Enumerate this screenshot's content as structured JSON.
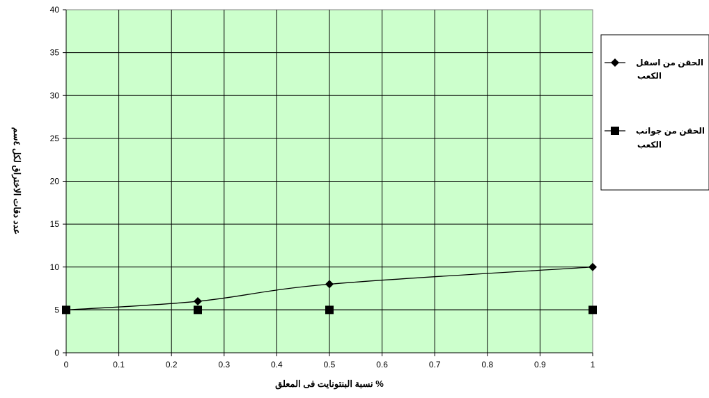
{
  "chart_data": {
    "type": "line",
    "xlabel": "نسبة البنتونايت فى المعلق %",
    "ylabel": "عدد دقات الاختراق لكل ٤سم",
    "xlim": [
      0,
      1
    ],
    "ylim": [
      0,
      40
    ],
    "x_ticks": [
      "0",
      "0.1",
      "0.2",
      "0.3",
      "0.4",
      "0.5",
      "0.6",
      "0.7",
      "0.8",
      "0.9",
      "1"
    ],
    "y_ticks": [
      "0",
      "5",
      "10",
      "15",
      "20",
      "25",
      "30",
      "35",
      "40"
    ],
    "grid": true,
    "plot_background": "#ccffcc",
    "legend_position": "right",
    "series": [
      {
        "name_line1": "الحقن من اسفل",
        "name_line2": "الكعب",
        "marker": "diamond",
        "smooth": true,
        "color": "#000000",
        "x": [
          0,
          0.25,
          0.5,
          1
        ],
        "y": [
          5,
          6,
          8,
          10
        ]
      },
      {
        "name_line1": "الحقن من جوانب",
        "name_line2": "الكعب",
        "marker": "square",
        "smooth": false,
        "color": "#000000",
        "x": [
          0,
          0.25,
          0.5,
          1
        ],
        "y": [
          5,
          5,
          5,
          5
        ]
      }
    ]
  }
}
